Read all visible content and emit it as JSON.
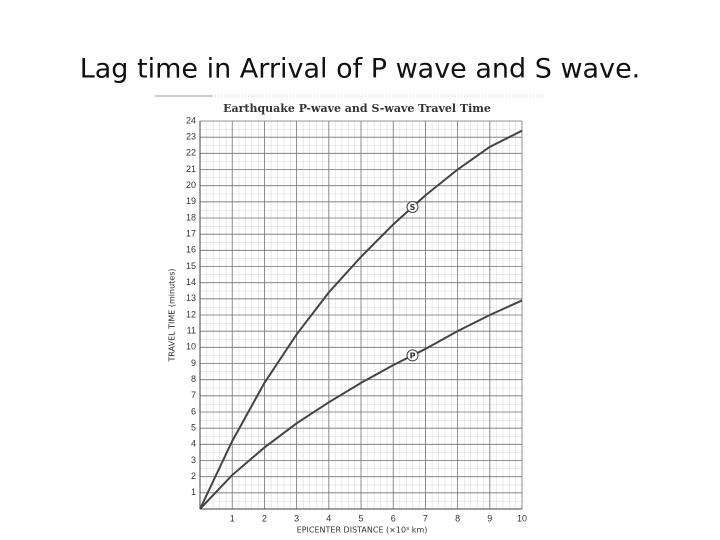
{
  "slide_title": "Lag time in Arrival of P wave and S wave.",
  "chart_data": {
    "type": "line",
    "title": "Earthquake P-wave and S-wave Travel Time",
    "x_label": "EPICENTER DISTANCE (×10³ km)",
    "y_label": "TRAVEL TIME (minutes)",
    "x": [
      0,
      1,
      2,
      3,
      4,
      5,
      6,
      7,
      8,
      9,
      10
    ],
    "series": [
      {
        "name": "S",
        "color": "#444444",
        "values": [
          0,
          4.2,
          7.8,
          10.8,
          13.4,
          15.6,
          17.6,
          19.4,
          21,
          22.4,
          23.4
        ]
      },
      {
        "name": "P",
        "color": "#444444",
        "values": [
          0,
          2.1,
          3.8,
          5.3,
          6.6,
          7.8,
          8.9,
          9.9,
          11,
          12,
          12.9
        ]
      }
    ],
    "xlim": [
      0,
      10
    ],
    "xticks": [
      1,
      2,
      3,
      4,
      5,
      6,
      7,
      8,
      9,
      10
    ],
    "ylim": [
      0,
      24
    ],
    "yticks": [
      1,
      2,
      3,
      4,
      5,
      6,
      7,
      8,
      9,
      10,
      11,
      12,
      13,
      14,
      15,
      16,
      17,
      18,
      19,
      20,
      21,
      22,
      23,
      24
    ],
    "grid": true
  }
}
